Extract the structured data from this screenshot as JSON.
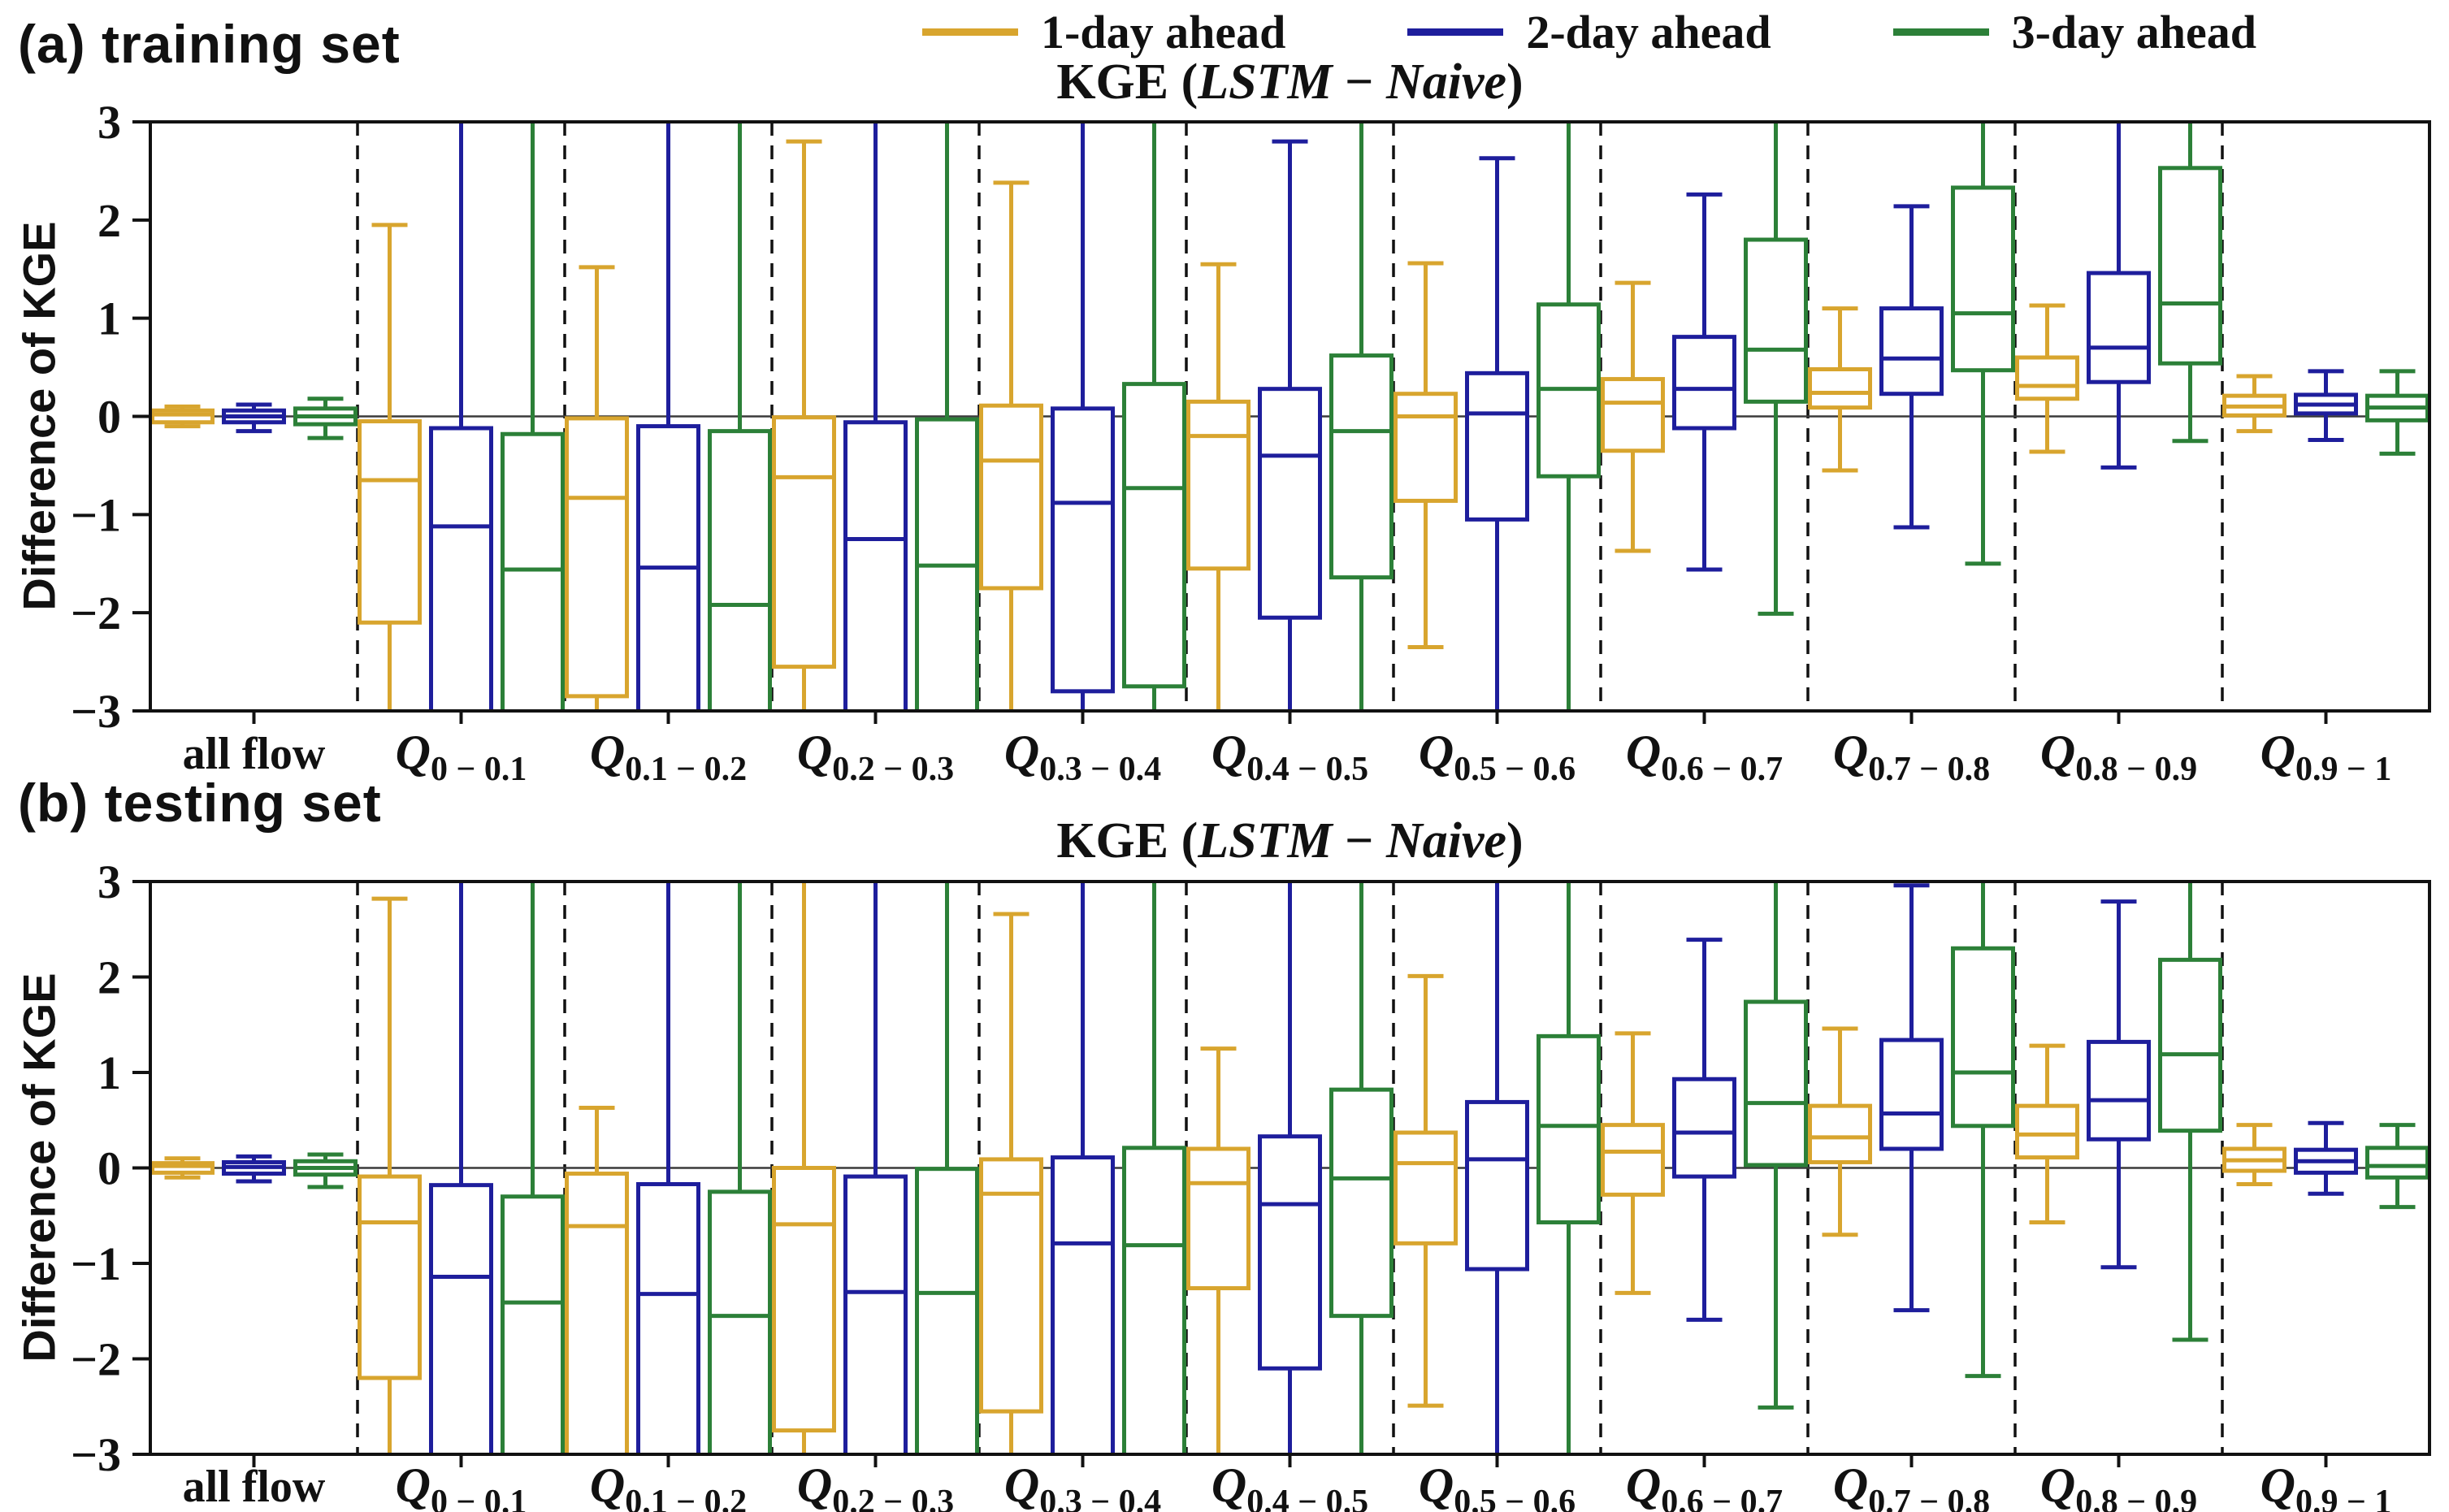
{
  "figure": {
    "legend": [
      {
        "label": "1-day ahead",
        "color": "#D8A52E"
      },
      {
        "label": "2-day ahead",
        "color": "#1E1E9C"
      },
      {
        "label": "3-day ahead",
        "color": "#2C8038"
      }
    ]
  },
  "chart_data": [
    {
      "type": "boxplot",
      "panel_id": "a",
      "panel_label": "(a) training set",
      "title": {
        "prefix": "KGE (",
        "model_a": "LSTM",
        "sep": " − ",
        "model_b": "Naive",
        "suffix": ")"
      },
      "ylabel": "Difference of KGE",
      "ylim": [
        -3,
        3
      ],
      "yticks": [
        3,
        2,
        1,
        0,
        -1,
        -2,
        -3
      ],
      "zero_line": true,
      "separators": "dashed vertical lines between categories",
      "legend_position": "top",
      "clipped_marker": 3.2,
      "categories": [
        {
          "label": "all flow"
        },
        {
          "label": "Q",
          "sub": "0 − 0.1"
        },
        {
          "label": "Q",
          "sub": "0.1 − 0.2"
        },
        {
          "label": "Q",
          "sub": "0.2 − 0.3"
        },
        {
          "label": "Q",
          "sub": "0.3 − 0.4"
        },
        {
          "label": "Q",
          "sub": "0.4 − 0.5"
        },
        {
          "label": "Q",
          "sub": "0.5 − 0.6"
        },
        {
          "label": "Q",
          "sub": "0.6 − 0.7"
        },
        {
          "label": "Q",
          "sub": "0.7 − 0.8"
        },
        {
          "label": "Q",
          "sub": "0.8 − 0.9"
        },
        {
          "label": "Q",
          "sub": "0.9 − 1"
        }
      ],
      "series": [
        {
          "name": "1-day ahead",
          "color": "#D8A52E",
          "boxes": [
            [
              -0.1,
              -0.06,
              0.02,
              0.06,
              0.1
            ],
            [
              -3.2,
              -2.1,
              -0.65,
              -0.05,
              1.95
            ],
            [
              -3.2,
              -2.85,
              -0.83,
              -0.02,
              1.52
            ],
            [
              -3.2,
              -2.55,
              -0.62,
              -0.01,
              2.8
            ],
            [
              -3.2,
              -1.75,
              -0.45,
              0.11,
              2.38
            ],
            [
              -3.2,
              -1.55,
              -0.2,
              0.15,
              1.55
            ],
            [
              -2.35,
              -0.86,
              0.0,
              0.23,
              1.56
            ],
            [
              -1.37,
              -0.35,
              0.14,
              0.38,
              1.36
            ],
            [
              -0.55,
              0.09,
              0.24,
              0.48,
              1.1
            ],
            [
              -0.36,
              0.18,
              0.31,
              0.6,
              1.13
            ],
            [
              -0.15,
              0.01,
              0.1,
              0.21,
              0.41
            ]
          ]
        },
        {
          "name": "2-day ahead",
          "color": "#1E1E9C",
          "boxes": [
            [
              -0.15,
              -0.06,
              0.0,
              0.06,
              0.12
            ],
            [
              -3.2,
              -3.2,
              -1.12,
              -0.12,
              3.2
            ],
            [
              -3.2,
              -3.2,
              -1.54,
              -0.1,
              3.2
            ],
            [
              -3.2,
              -3.2,
              -1.25,
              -0.06,
              3.2
            ],
            [
              -3.2,
              -2.8,
              -0.88,
              0.08,
              3.2
            ],
            [
              -3.2,
              -2.05,
              -0.4,
              0.28,
              2.8
            ],
            [
              -3.2,
              -1.05,
              0.03,
              0.44,
              2.63
            ],
            [
              -1.56,
              -0.12,
              0.28,
              0.81,
              2.26
            ],
            [
              -1.13,
              0.23,
              0.59,
              1.1,
              2.14
            ],
            [
              -0.52,
              0.35,
              0.7,
              1.46,
              3.2
            ],
            [
              -0.24,
              0.03,
              0.12,
              0.22,
              0.46
            ]
          ]
        },
        {
          "name": "3-day ahead",
          "color": "#2C8038",
          "boxes": [
            [
              -0.22,
              -0.08,
              0.0,
              0.08,
              0.18
            ],
            [
              -3.2,
              -3.2,
              -1.56,
              -0.18,
              3.2
            ],
            [
              -3.2,
              -3.2,
              -1.92,
              -0.15,
              3.2
            ],
            [
              -3.2,
              -3.2,
              -1.52,
              -0.03,
              3.2
            ],
            [
              -3.2,
              -2.75,
              -0.73,
              0.33,
              3.2
            ],
            [
              -3.2,
              -1.64,
              -0.15,
              0.62,
              3.2
            ],
            [
              -3.2,
              -0.61,
              0.28,
              1.14,
              3.2
            ],
            [
              -2.01,
              0.15,
              0.68,
              1.8,
              3.2
            ],
            [
              -1.5,
              0.47,
              1.05,
              2.33,
              3.2
            ],
            [
              -0.25,
              0.54,
              1.15,
              2.53,
              3.2
            ],
            [
              -0.38,
              -0.04,
              0.09,
              0.21,
              0.46
            ]
          ]
        }
      ]
    },
    {
      "type": "boxplot",
      "panel_id": "b",
      "panel_label": "(b) testing set",
      "title": {
        "prefix": "KGE (",
        "model_a": "LSTM",
        "sep": " − ",
        "model_b": "Naive",
        "suffix": ")"
      },
      "ylabel": "Difference of KGE",
      "ylim": [
        -3,
        3
      ],
      "yticks": [
        3,
        2,
        1,
        0,
        -1,
        -2,
        -3
      ],
      "zero_line": true,
      "separators": "dashed vertical lines between categories",
      "clipped_marker": 3.2,
      "categories": [
        {
          "label": "all flow"
        },
        {
          "label": "Q",
          "sub": "0 − 0.1"
        },
        {
          "label": "Q",
          "sub": "0.1 − 0.2"
        },
        {
          "label": "Q",
          "sub": "0.2 − 0.3"
        },
        {
          "label": "Q",
          "sub": "0.3 − 0.4"
        },
        {
          "label": "Q",
          "sub": "0.4 − 0.5"
        },
        {
          "label": "Q",
          "sub": "0.5 − 0.6"
        },
        {
          "label": "Q",
          "sub": "0.6 − 0.7"
        },
        {
          "label": "Q",
          "sub": "0.7 − 0.8"
        },
        {
          "label": "Q",
          "sub": "0.8 − 0.9"
        },
        {
          "label": "Q",
          "sub": "0.9 − 1"
        }
      ],
      "series": [
        {
          "name": "1-day ahead",
          "color": "#D8A52E",
          "boxes": [
            [
              -0.1,
              -0.05,
              0.02,
              0.05,
              0.1
            ],
            [
              -3.2,
              -2.2,
              -0.57,
              -0.09,
              2.82
            ],
            [
              -3.2,
              -3.2,
              -0.61,
              -0.06,
              0.63
            ],
            [
              -3.2,
              -2.75,
              -0.59,
              0.0,
              3.2
            ],
            [
              -3.2,
              -2.55,
              -0.27,
              0.09,
              2.66
            ],
            [
              -3.2,
              -1.26,
              -0.16,
              0.2,
              1.25
            ],
            [
              -2.49,
              -0.79,
              0.05,
              0.37,
              2.01
            ],
            [
              -1.31,
              -0.28,
              0.17,
              0.45,
              1.41
            ],
            [
              -0.7,
              0.06,
              0.32,
              0.65,
              1.46
            ],
            [
              -0.57,
              0.11,
              0.35,
              0.65,
              1.28
            ],
            [
              -0.17,
              -0.03,
              0.08,
              0.2,
              0.45
            ]
          ]
        },
        {
          "name": "2-day ahead",
          "color": "#1E1E9C",
          "boxes": [
            [
              -0.14,
              -0.06,
              0.01,
              0.06,
              0.12
            ],
            [
              -3.2,
              -3.2,
              -1.14,
              -0.18,
              3.2
            ],
            [
              -3.2,
              -3.2,
              -1.32,
              -0.17,
              3.2
            ],
            [
              -3.2,
              -3.2,
              -1.3,
              -0.09,
              3.2
            ],
            [
              -3.2,
              -3.2,
              -0.79,
              0.11,
              3.2
            ],
            [
              -3.2,
              -2.1,
              -0.38,
              0.33,
              3.2
            ],
            [
              -3.2,
              -1.06,
              0.09,
              0.69,
              3.2
            ],
            [
              -1.59,
              -0.09,
              0.37,
              0.93,
              2.39
            ],
            [
              -1.49,
              0.2,
              0.57,
              1.34,
              2.96
            ],
            [
              -1.04,
              0.3,
              0.71,
              1.32,
              2.79
            ],
            [
              -0.27,
              -0.05,
              0.07,
              0.19,
              0.47
            ]
          ]
        },
        {
          "name": "3-day ahead",
          "color": "#2C8038",
          "boxes": [
            [
              -0.2,
              -0.07,
              0.0,
              0.07,
              0.14
            ],
            [
              -3.2,
              -3.2,
              -1.41,
              -0.3,
              3.2
            ],
            [
              -3.2,
              -3.2,
              -1.55,
              -0.25,
              3.2
            ],
            [
              -3.2,
              -3.2,
              -1.31,
              -0.01,
              3.2
            ],
            [
              -3.2,
              -3.2,
              -0.81,
              0.21,
              3.2
            ],
            [
              -3.2,
              -1.55,
              -0.11,
              0.82,
              3.2
            ],
            [
              -3.2,
              -0.57,
              0.44,
              1.38,
              3.2
            ],
            [
              -2.51,
              0.03,
              0.68,
              1.74,
              3.2
            ],
            [
              -2.18,
              0.44,
              1.0,
              2.3,
              3.2
            ],
            [
              -1.8,
              0.39,
              1.19,
              2.18,
              3.2
            ],
            [
              -0.41,
              -0.1,
              0.02,
              0.21,
              0.45
            ]
          ]
        }
      ]
    }
  ]
}
